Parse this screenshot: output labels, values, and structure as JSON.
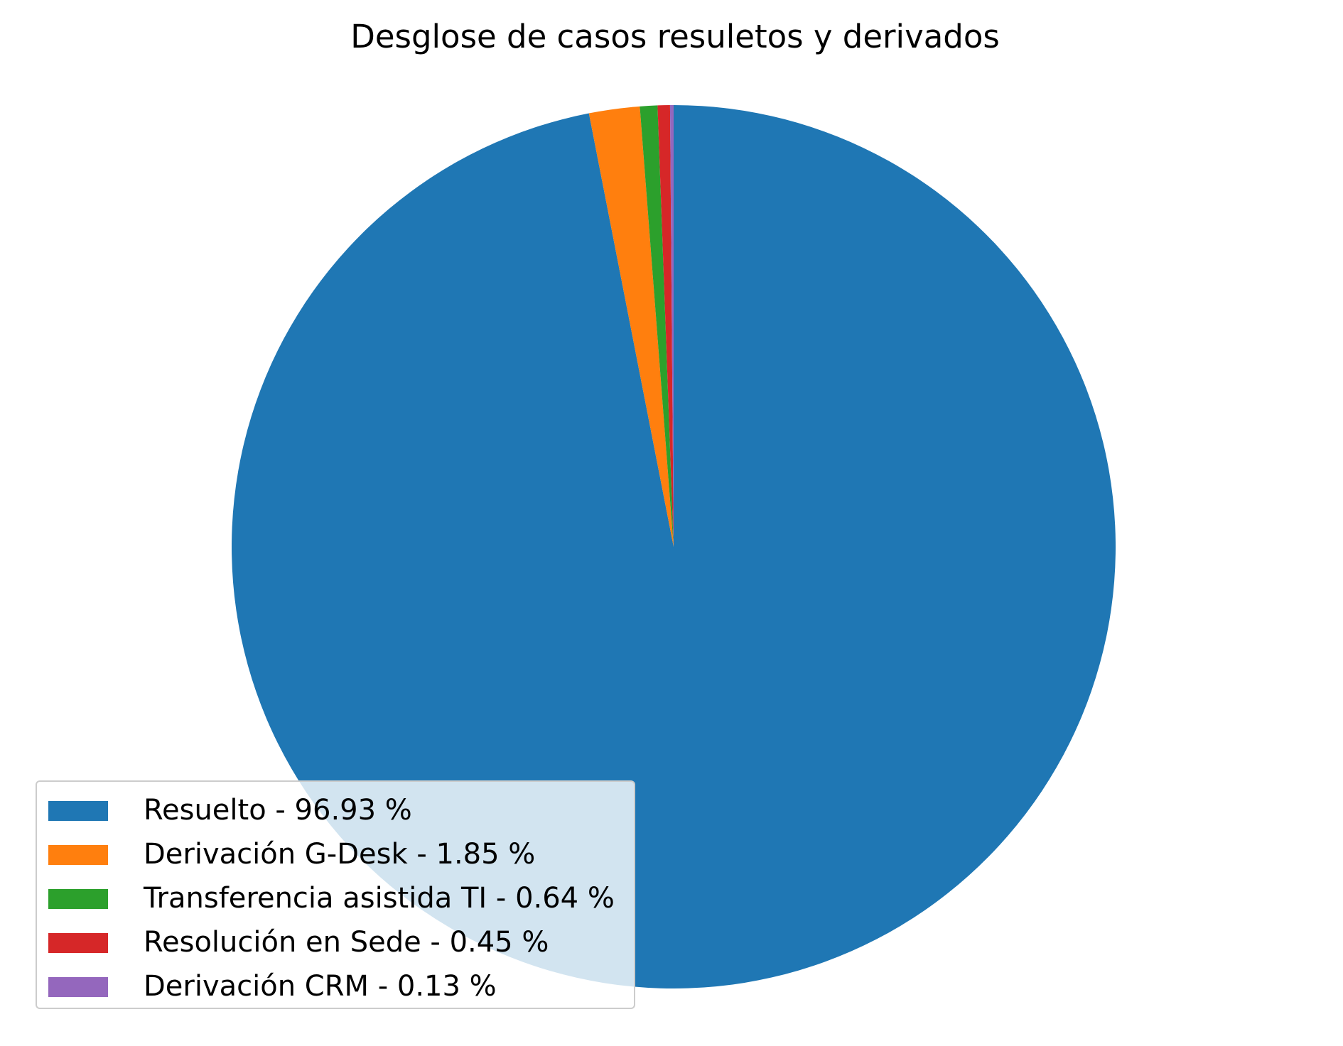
{
  "chart_data": {
    "type": "pie",
    "title": "Desglose de casos resuletos y derivados",
    "start_angle": "top",
    "direction": "clockwise",
    "legend_placement": "lower-left",
    "slices": [
      {
        "label": "Resuelto",
        "legend_text": "Resuelto - 96.93 %",
        "value": 96.93,
        "color": "#1f77b4"
      },
      {
        "label": "Derivación G-Desk",
        "legend_text": "Derivación G-Desk - 1.85 %",
        "value": 1.85,
        "color": "#ff7f0e"
      },
      {
        "label": "Transferencia asistida TI",
        "legend_text": "Transferencia asistida TI - 0.64 %",
        "value": 0.64,
        "color": "#2ca02c"
      },
      {
        "label": "Resolución en Sede",
        "legend_text": "Resolución en Sede - 0.45 %",
        "value": 0.45,
        "color": "#d62728"
      },
      {
        "label": "Derivación CRM",
        "legend_text": "Derivación CRM - 0.13 %",
        "value": 0.13,
        "color": "#9467bd"
      }
    ]
  }
}
